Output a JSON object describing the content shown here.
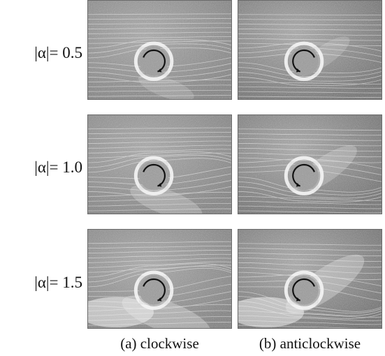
{
  "row_labels": [
    "|α|= 0.5",
    "|α|= 1.0",
    "|α|= 1.5"
  ],
  "column_captions": [
    "(a) clockwise",
    "(b) anticlockwise"
  ],
  "panels": [
    {
      "row": 0,
      "col": 0,
      "rotation": "clockwise",
      "alpha": 0.5
    },
    {
      "row": 0,
      "col": 1,
      "rotation": "anticlockwise",
      "alpha": 0.5
    },
    {
      "row": 1,
      "col": 0,
      "rotation": "clockwise",
      "alpha": 1.0
    },
    {
      "row": 1,
      "col": 1,
      "rotation": "anticlockwise",
      "alpha": 1.0
    },
    {
      "row": 2,
      "col": 0,
      "rotation": "clockwise",
      "alpha": 1.5
    },
    {
      "row": 2,
      "col": 1,
      "rotation": "anticlockwise",
      "alpha": 1.5
    }
  ]
}
